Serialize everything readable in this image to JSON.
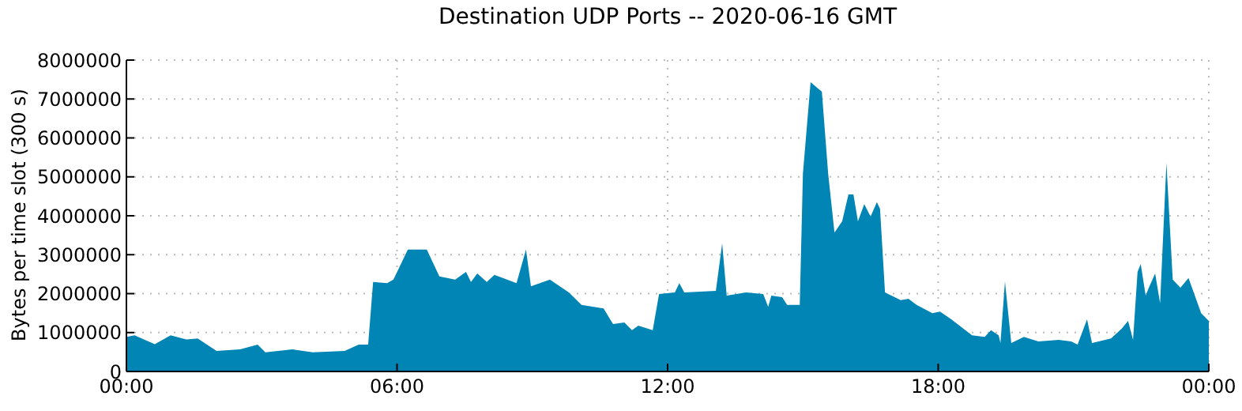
{
  "chart_data": {
    "type": "area",
    "title": "Destination UDP Ports -- 2020-06-16 GMT",
    "ylabel": "Bytes per time slot (300 s)",
    "x": [
      0,
      0.18,
      0.63,
      0.98,
      1.33,
      1.58,
      2.0,
      2.52,
      2.91,
      3.08,
      3.68,
      4.13,
      4.84,
      5.15,
      5.36,
      5.47,
      5.78,
      5.92,
      6.24,
      6.66,
      6.94,
      7.29,
      7.53,
      7.64,
      7.78,
      7.99,
      8.16,
      8.65,
      8.86,
      8.97,
      9.39,
      9.81,
      10.09,
      10.58,
      10.79,
      11.04,
      11.21,
      11.35,
      11.67,
      11.81,
      12.16,
      12.26,
      12.37,
      13.07,
      13.21,
      13.31,
      13.74,
      14.12,
      14.23,
      14.3,
      14.54,
      14.65,
      14.93,
      15.0,
      15.17,
      15.42,
      15.56,
      15.7,
      15.87,
      16.01,
      16.12,
      16.22,
      16.36,
      16.5,
      16.64,
      16.71,
      16.82,
      17.17,
      17.34,
      17.52,
      17.87,
      18.04,
      18.29,
      18.75,
      19.03,
      19.17,
      19.34,
      19.38,
      19.48,
      19.62,
      19.9,
      20.22,
      20.67,
      20.95,
      21.09,
      21.3,
      21.41,
      21.83,
      22.07,
      22.21,
      22.32,
      22.42,
      22.49,
      22.6,
      22.67,
      22.81,
      22.92,
      23.06,
      23.2,
      23.37,
      23.55,
      23.83,
      24
    ],
    "series": [
      {
        "color": "#0085b5",
        "values": [
          890000,
          930000,
          700000,
          930000,
          820000,
          850000,
          530000,
          570000,
          690000,
          490000,
          570000,
          490000,
          530000,
          690000,
          690000,
          2300000,
          2270000,
          2360000,
          3130000,
          3130000,
          2440000,
          2360000,
          2560000,
          2300000,
          2520000,
          2300000,
          2480000,
          2270000,
          3130000,
          2190000,
          2360000,
          2030000,
          1710000,
          1620000,
          1220000,
          1260000,
          1060000,
          1180000,
          1060000,
          1990000,
          2030000,
          2270000,
          2030000,
          2070000,
          3290000,
          1950000,
          2030000,
          1990000,
          1660000,
          1950000,
          1910000,
          1710000,
          1710000,
          5080000,
          7430000,
          7190000,
          5080000,
          3570000,
          3860000,
          4550000,
          4550000,
          3860000,
          4300000,
          3980000,
          4350000,
          4180000,
          2030000,
          1830000,
          1870000,
          1710000,
          1500000,
          1540000,
          1340000,
          930000,
          890000,
          1060000,
          930000,
          730000,
          2310000,
          730000,
          890000,
          770000,
          810000,
          770000,
          690000,
          1340000,
          730000,
          850000,
          1100000,
          1300000,
          810000,
          2560000,
          2760000,
          1950000,
          2150000,
          2520000,
          1750000,
          5360000,
          2360000,
          2150000,
          2400000,
          1500000,
          1300000
        ]
      }
    ],
    "xlim": [
      0,
      24
    ],
    "xticks": [
      {
        "value": 0,
        "label": "00:00"
      },
      {
        "value": 6,
        "label": "06:00"
      },
      {
        "value": 12,
        "label": "12:00"
      },
      {
        "value": 18,
        "label": "18:00"
      },
      {
        "value": 24,
        "label": "00:00"
      }
    ],
    "ylim": [
      0,
      8000000
    ],
    "yticks": [
      0,
      1000000,
      2000000,
      3000000,
      4000000,
      5000000,
      6000000,
      7000000,
      8000000
    ],
    "grid": true
  }
}
